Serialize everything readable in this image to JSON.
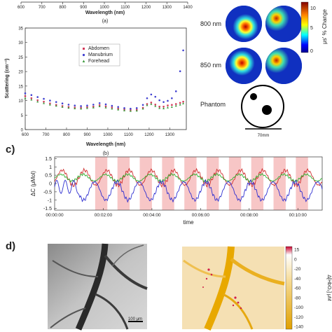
{
  "top_strip": {
    "tick_labels": [
      "600",
      "700",
      "800",
      "900",
      "1000",
      "1100",
      "1200",
      "1300",
      "1400"
    ],
    "xlabel": "Wavelength (nm)",
    "caption": "(a)"
  },
  "panel_b": {
    "caption": "(b)",
    "chart_data": {
      "type": "scatter",
      "xlabel": "Wavelength (nm)",
      "ylabel": "Scattering (cm⁻¹)",
      "xlim": [
        600,
        1380
      ],
      "ylim": [
        0,
        35
      ],
      "xticks": [
        "600",
        "700",
        "800",
        "900",
        "1000",
        "1100",
        "1200",
        "1300"
      ],
      "yticks": [
        "0",
        "5",
        "10",
        "15",
        "20",
        "25",
        "30",
        "35"
      ],
      "legend_position": "upper-center",
      "series": [
        {
          "name": "Abdomen",
          "color": "#d43a5a",
          "marker": "square",
          "x": [
            600,
            630,
            660,
            690,
            720,
            750,
            780,
            810,
            840,
            870,
            900,
            930,
            960,
            990,
            1020,
            1050,
            1080,
            1110,
            1140,
            1170,
            1190,
            1210,
            1230,
            1250,
            1270,
            1290,
            1310,
            1330,
            1350,
            1365
          ],
          "y": [
            11.5,
            10.8,
            10.1,
            9.6,
            9.0,
            8.5,
            8.1,
            7.8,
            7.6,
            7.5,
            7.7,
            7.9,
            8.4,
            8.0,
            7.6,
            7.2,
            6.9,
            6.7,
            6.8,
            7.5,
            8.8,
            9.3,
            8.6,
            7.9,
            7.9,
            8.3,
            8.5,
            8.8,
            9.2,
            9.6
          ]
        },
        {
          "name": "Manubrium",
          "color": "#4040d0",
          "marker": "circle",
          "x": [
            600,
            630,
            660,
            690,
            720,
            750,
            780,
            810,
            840,
            870,
            900,
            930,
            960,
            990,
            1020,
            1050,
            1080,
            1110,
            1140,
            1170,
            1190,
            1210,
            1230,
            1250,
            1270,
            1290,
            1310,
            1330,
            1350,
            1365
          ],
          "y": [
            12.5,
            11.9,
            11.2,
            10.6,
            10.0,
            9.5,
            9.0,
            8.6,
            8.3,
            8.1,
            8.3,
            8.6,
            9.1,
            8.7,
            8.2,
            7.8,
            7.4,
            7.2,
            7.4,
            8.5,
            10.8,
            12.1,
            11.3,
            10.1,
            9.5,
            9.9,
            10.8,
            13.2,
            20.1,
            27.3
          ]
        },
        {
          "name": "Forehead",
          "color": "#3a9a3a",
          "marker": "triangle",
          "x": [
            600,
            630,
            660,
            690,
            720,
            750,
            780,
            810,
            840,
            870,
            900,
            930,
            960,
            990,
            1020,
            1050,
            1080,
            1110,
            1140,
            1170,
            1190,
            1210,
            1230,
            1250,
            1270,
            1290,
            1310,
            1330,
            1350,
            1365
          ],
          "y": [
            10.8,
            10.3,
            9.6,
            9.1,
            8.6,
            8.2,
            7.8,
            7.5,
            7.3,
            7.2,
            7.4,
            7.6,
            8.0,
            7.6,
            7.2,
            6.9,
            6.6,
            6.4,
            6.5,
            7.2,
            8.4,
            8.8,
            8.1,
            7.4,
            7.3,
            7.6,
            7.8,
            8.2,
            8.6,
            9.0
          ]
        }
      ]
    }
  },
  "panel_maps": {
    "row_labels": [
      "800 nm",
      "850 nm",
      "Phantom"
    ],
    "colorbar_ticks": [
      "10",
      "5",
      "0"
    ],
    "colorbar_label": "μs' % Change",
    "scale_bar_label": "70mm"
  },
  "panel_c": {
    "label": "c)",
    "chart_data": {
      "type": "line",
      "ylabel": "ΔC (μMol)",
      "xlabel": "time",
      "xticks": [
        "00:00:00",
        "00:02:00",
        "00:04:00",
        "00:06:00",
        "00:08:00",
        "00:10:00"
      ],
      "yticks": [
        "1.5",
        "1",
        "0.5",
        "0",
        "-0.5",
        "-1",
        "-1.5"
      ],
      "ylim": [
        -1.6,
        1.6
      ],
      "xlim_seconds": [
        0,
        660
      ],
      "stimulus_blocks_seconds": [
        [
          100,
          130
        ],
        [
          155,
          185
        ],
        [
          210,
          240
        ],
        [
          265,
          295
        ],
        [
          320,
          350
        ],
        [
          375,
          405
        ],
        [
          430,
          460
        ],
        [
          485,
          515
        ],
        [
          540,
          570
        ],
        [
          595,
          625
        ]
      ],
      "series": [
        {
          "name": "red",
          "color": "#d03030"
        },
        {
          "name": "green",
          "color": "#30b030"
        },
        {
          "name": "blue",
          "color": "#3030d0"
        }
      ]
    }
  },
  "panel_d": {
    "label": "d)",
    "scale_bar_label": "100 μm",
    "colorbar_ticks": [
      "15",
      "0",
      "-20",
      "-40",
      "-60",
      "-80",
      "-100",
      "-120",
      "-140"
    ],
    "colorbar_label": "Δ[HbO₂] μM"
  }
}
